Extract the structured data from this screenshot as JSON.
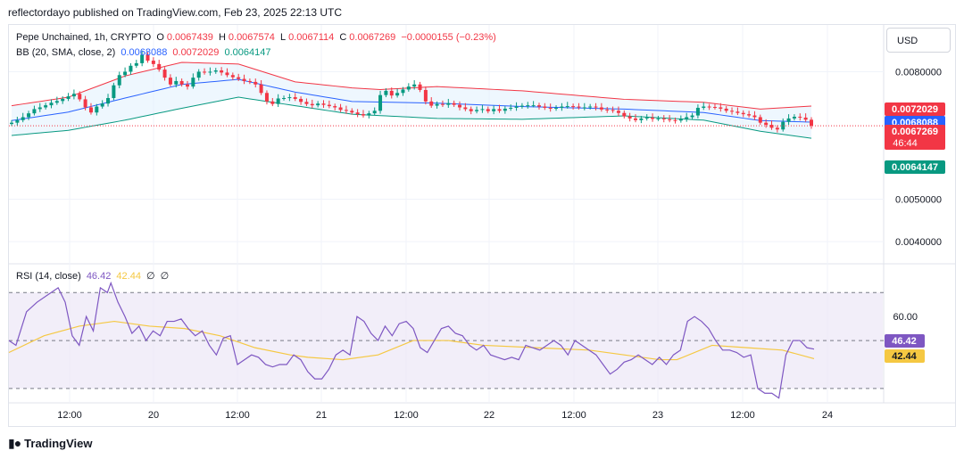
{
  "header": {
    "published": "reflectordayo published on TradingView.com, Feb 23, 2025 22:13 UTC"
  },
  "legend": {
    "symbol": "Pepe Unchained, 1h, CRYPTO",
    "o_label": "O",
    "o_value": "0.0067439",
    "h_label": "H",
    "h_value": "0.0067574",
    "l_label": "L",
    "l_value": "0.0067114",
    "c_label": "C",
    "c_value": "0.0067269",
    "change": "−0.0000155 (−0.23%)",
    "bb_label": "BB (20, SMA, close, 2)",
    "bb_basis": "0.0068088",
    "bb_upper": "0.0072029",
    "bb_lower": "0.0064147",
    "rsi_label": "RSI (14, close)",
    "rsi_value": "46.42",
    "rsi_ma": "42.44",
    "rsi_extra1": "∅",
    "rsi_extra2": "∅"
  },
  "currency_button": "USD",
  "colors": {
    "up": "#089981",
    "down": "#f23645",
    "basis": "#2962ff",
    "upper": "#f23645",
    "lower": "#089981",
    "rsi": "#7e57c2",
    "rsi_ma": "#f5c842",
    "band_fill": "#e3f2fd",
    "rsi_fill": "#ede7f6"
  },
  "footer": {
    "brand": "TradingView",
    "logo": "tradingview-logo-icon"
  },
  "chart_data": [
    {
      "type": "candlestick",
      "title": "Pepe Unchained, 1h, CRYPTO",
      "y_axis_ticks": [
        "0.0080000",
        "0.0050000",
        "0.0040000"
      ],
      "ylim": [
        0.0035,
        0.0091
      ],
      "x_axis_ticks": [
        "12:00",
        "20",
        "12:00",
        "21",
        "12:00",
        "22",
        "12:00",
        "23",
        "12:00",
        "24"
      ],
      "price_labels": [
        {
          "text": "0.0072029",
          "color": "#f23645",
          "value": 0.0072029
        },
        {
          "text": "0.0068088",
          "color": "#2962ff",
          "value": 0.0068088
        },
        {
          "text": "0.0067269",
          "countdown": "46:44",
          "color": "#f23645",
          "value": 0.0067269
        },
        {
          "text": "0.0064147",
          "color": "#089981",
          "value": 0.0064147
        }
      ],
      "closes": [
        0.0068,
        0.00686,
        0.00693,
        0.00702,
        0.00712,
        0.00716,
        0.00721,
        0.00727,
        0.00731,
        0.00736,
        0.00742,
        0.00748,
        0.00735,
        0.00716,
        0.00704,
        0.00718,
        0.00725,
        0.00738,
        0.00768,
        0.00792,
        0.008,
        0.00814,
        0.0082,
        0.0084,
        0.00826,
        0.00818,
        0.00805,
        0.00786,
        0.0077,
        0.00778,
        0.0077,
        0.00765,
        0.00786,
        0.008,
        0.00798,
        0.008,
        0.00803,
        0.00798,
        0.00792,
        0.00787,
        0.00783,
        0.00778,
        0.00776,
        0.0077,
        0.0075,
        0.0073,
        0.00724,
        0.00737,
        0.00738,
        0.0074,
        0.00736,
        0.00729,
        0.00724,
        0.00721,
        0.00725,
        0.00722,
        0.00719,
        0.00716,
        0.0071,
        0.00708,
        0.00704,
        0.007,
        0.00697,
        0.00702,
        0.00708,
        0.00745,
        0.00755,
        0.00744,
        0.0075,
        0.00758,
        0.00765,
        0.0077,
        0.00757,
        0.0073,
        0.0072,
        0.00724,
        0.00722,
        0.00726,
        0.00722,
        0.00716,
        0.00712,
        0.00707,
        0.0071,
        0.00712,
        0.00707,
        0.00712,
        0.00708,
        0.00713,
        0.00715,
        0.00718,
        0.0072,
        0.00721,
        0.00721,
        0.00718,
        0.00715,
        0.00713,
        0.00715,
        0.00718,
        0.00719,
        0.00718,
        0.00716,
        0.00716,
        0.00718,
        0.00716,
        0.00711,
        0.0071,
        0.00708,
        0.00703,
        0.00695,
        0.0069,
        0.00686,
        0.0069,
        0.00692,
        0.00689,
        0.0069,
        0.00688,
        0.00686,
        0.00685,
        0.00689,
        0.00693,
        0.00697,
        0.00715,
        0.00718,
        0.00717,
        0.00716,
        0.00713,
        0.00708,
        0.00706,
        0.00703,
        0.007,
        0.00697,
        0.00693,
        0.0068,
        0.00675,
        0.00668,
        0.00664,
        0.00682,
        0.0069,
        0.00694,
        0.00692,
        0.00687,
        0.006727
      ],
      "bb_upper": {
        "start": 0.0072,
        "points": [
          [
            0,
            0.0072
          ],
          [
            10,
            0.0074
          ],
          [
            20,
            0.0079
          ],
          [
            30,
            0.00822
          ],
          [
            40,
            0.00818
          ],
          [
            50,
            0.00776
          ],
          [
            60,
            0.00762
          ],
          [
            65,
            0.00758
          ],
          [
            75,
            0.00765
          ],
          [
            90,
            0.00755
          ],
          [
            108,
            0.00735
          ],
          [
            122,
            0.00728
          ],
          [
            132,
            0.00712
          ],
          [
            142,
            0.0072
          ]
        ]
      },
      "bb_basis": {
        "points": [
          [
            0,
            0.00685
          ],
          [
            10,
            0.00705
          ],
          [
            20,
            0.00738
          ],
          [
            30,
            0.0077
          ],
          [
            40,
            0.00782
          ],
          [
            50,
            0.00752
          ],
          [
            60,
            0.0073
          ],
          [
            75,
            0.00726
          ],
          [
            90,
            0.00718
          ],
          [
            108,
            0.00712
          ],
          [
            122,
            0.00704
          ],
          [
            132,
            0.00685
          ],
          [
            142,
            0.006809
          ]
        ]
      },
      "bb_lower": {
        "points": [
          [
            0,
            0.0065
          ],
          [
            10,
            0.00662
          ],
          [
            20,
            0.00686
          ],
          [
            30,
            0.00714
          ],
          [
            40,
            0.0074
          ],
          [
            50,
            0.0072
          ],
          [
            60,
            0.007
          ],
          [
            75,
            0.0069
          ],
          [
            90,
            0.00688
          ],
          [
            108,
            0.00696
          ],
          [
            122,
            0.00686
          ],
          [
            132,
            0.0066
          ],
          [
            142,
            0.006415
          ]
        ]
      }
    },
    {
      "type": "line",
      "title": "RSI (14, close)",
      "y_axis_ticks": [
        "60.00"
      ],
      "ylim": [
        24,
        82
      ],
      "levels": [
        70,
        50,
        30
      ],
      "current_labels": [
        {
          "text": "46.42",
          "color": "#7e57c2",
          "value": 46.42
        },
        {
          "text": "42.44",
          "color": "#f5c842",
          "value": 42.44
        }
      ],
      "rsi": [
        [
          0,
          50
        ],
        [
          4,
          48
        ],
        [
          10,
          62
        ],
        [
          16,
          66
        ],
        [
          24,
          70
        ],
        [
          28,
          72
        ],
        [
          32,
          66
        ],
        [
          36,
          52
        ],
        [
          40,
          48
        ],
        [
          44,
          60
        ],
        [
          48,
          54
        ],
        [
          52,
          72
        ],
        [
          56,
          70
        ],
        [
          58,
          74
        ],
        [
          62,
          66
        ],
        [
          66,
          60
        ],
        [
          70,
          53
        ],
        [
          74,
          56
        ],
        [
          78,
          50
        ],
        [
          82,
          54
        ],
        [
          86,
          52
        ],
        [
          90,
          58
        ],
        [
          94,
          58
        ],
        [
          98,
          59
        ],
        [
          102,
          55
        ],
        [
          106,
          52
        ],
        [
          110,
          54
        ],
        [
          114,
          48
        ],
        [
          118,
          44
        ],
        [
          122,
          51
        ],
        [
          126,
          52
        ],
        [
          130,
          40
        ],
        [
          134,
          42
        ],
        [
          138,
          44
        ],
        [
          142,
          43
        ],
        [
          146,
          40
        ],
        [
          150,
          39
        ],
        [
          154,
          40
        ],
        [
          158,
          40
        ],
        [
          162,
          44
        ],
        [
          166,
          42
        ],
        [
          170,
          37
        ],
        [
          174,
          34
        ],
        [
          178,
          34
        ],
        [
          182,
          38
        ],
        [
          186,
          44
        ],
        [
          190,
          46
        ],
        [
          194,
          44
        ],
        [
          198,
          60
        ],
        [
          202,
          58
        ],
        [
          206,
          53
        ],
        [
          210,
          50
        ],
        [
          214,
          56
        ],
        [
          218,
          52
        ],
        [
          222,
          57
        ],
        [
          226,
          58
        ],
        [
          230,
          55
        ],
        [
          234,
          47
        ],
        [
          238,
          45
        ],
        [
          242,
          50
        ],
        [
          246,
          55
        ],
        [
          250,
          56
        ],
        [
          254,
          53
        ],
        [
          258,
          52
        ],
        [
          262,
          48
        ],
        [
          266,
          46
        ],
        [
          270,
          48
        ],
        [
          274,
          44
        ],
        [
          278,
          43
        ],
        [
          282,
          42
        ],
        [
          286,
          43
        ],
        [
          290,
          42
        ],
        [
          294,
          48
        ],
        [
          298,
          47
        ],
        [
          302,
          46
        ],
        [
          306,
          48
        ],
        [
          310,
          50
        ],
        [
          314,
          48
        ],
        [
          318,
          44
        ],
        [
          322,
          50
        ],
        [
          326,
          48
        ],
        [
          330,
          46
        ],
        [
          334,
          44
        ],
        [
          338,
          40
        ],
        [
          342,
          36
        ],
        [
          346,
          38
        ],
        [
          350,
          41
        ],
        [
          354,
          42
        ],
        [
          358,
          44
        ],
        [
          362,
          42
        ],
        [
          366,
          40
        ],
        [
          370,
          43
        ],
        [
          374,
          40
        ],
        [
          378,
          44
        ],
        [
          382,
          46
        ],
        [
          386,
          58
        ],
        [
          390,
          60
        ],
        [
          394,
          58
        ],
        [
          398,
          55
        ],
        [
          402,
          50
        ],
        [
          406,
          46
        ],
        [
          410,
          46
        ],
        [
          414,
          45
        ],
        [
          418,
          43
        ],
        [
          422,
          44
        ],
        [
          426,
          30
        ],
        [
          430,
          28
        ],
        [
          434,
          28
        ],
        [
          438,
          26
        ],
        [
          442,
          44
        ],
        [
          446,
          50
        ],
        [
          450,
          50
        ],
        [
          454,
          47
        ],
        [
          458,
          46.42
        ]
      ],
      "rsi_ma": [
        [
          0,
          45
        ],
        [
          20,
          52
        ],
        [
          40,
          56
        ],
        [
          60,
          58
        ],
        [
          80,
          56
        ],
        [
          100,
          55
        ],
        [
          120,
          52
        ],
        [
          140,
          47
        ],
        [
          160,
          44
        ],
        [
          170,
          43
        ],
        [
          190,
          42
        ],
        [
          210,
          44
        ],
        [
          230,
          50
        ],
        [
          250,
          50
        ],
        [
          270,
          48
        ],
        [
          300,
          47
        ],
        [
          330,
          46
        ],
        [
          350,
          44
        ],
        [
          370,
          42
        ],
        [
          380,
          42
        ],
        [
          400,
          48
        ],
        [
          420,
          47
        ],
        [
          440,
          46
        ],
        [
          458,
          42.44
        ]
      ]
    }
  ]
}
